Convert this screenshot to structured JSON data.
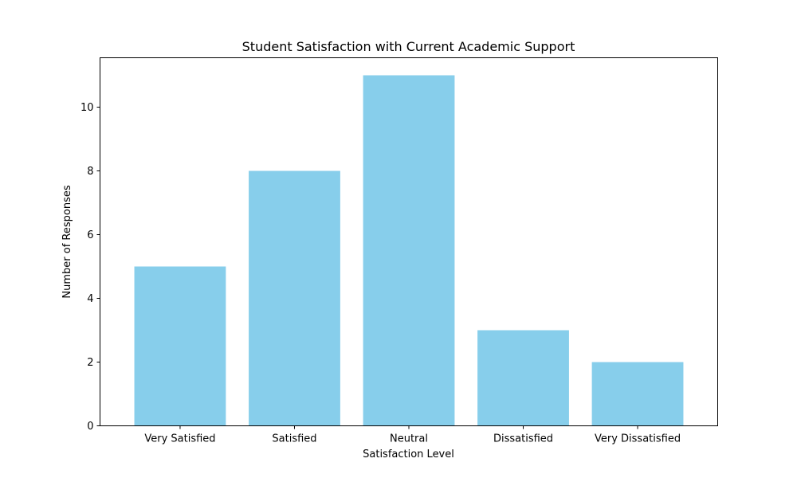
{
  "chart_data": {
    "type": "bar",
    "title": "Student Satisfaction with Current Academic Support",
    "xlabel": "Satisfaction Level",
    "ylabel": "Number of Responses",
    "categories": [
      "Very Satisfied",
      "Satisfied",
      "Neutral",
      "Dissatisfied",
      "Very Dissatisfied"
    ],
    "values": [
      5,
      8,
      11,
      3,
      2
    ],
    "ylim": [
      0,
      11.55
    ],
    "yticks": [
      "0",
      "2",
      "4",
      "6",
      "8",
      "10"
    ],
    "grid": false,
    "colors": {
      "bar": "#87ceeb",
      "axes": "#000000",
      "background": "#ffffff"
    }
  }
}
